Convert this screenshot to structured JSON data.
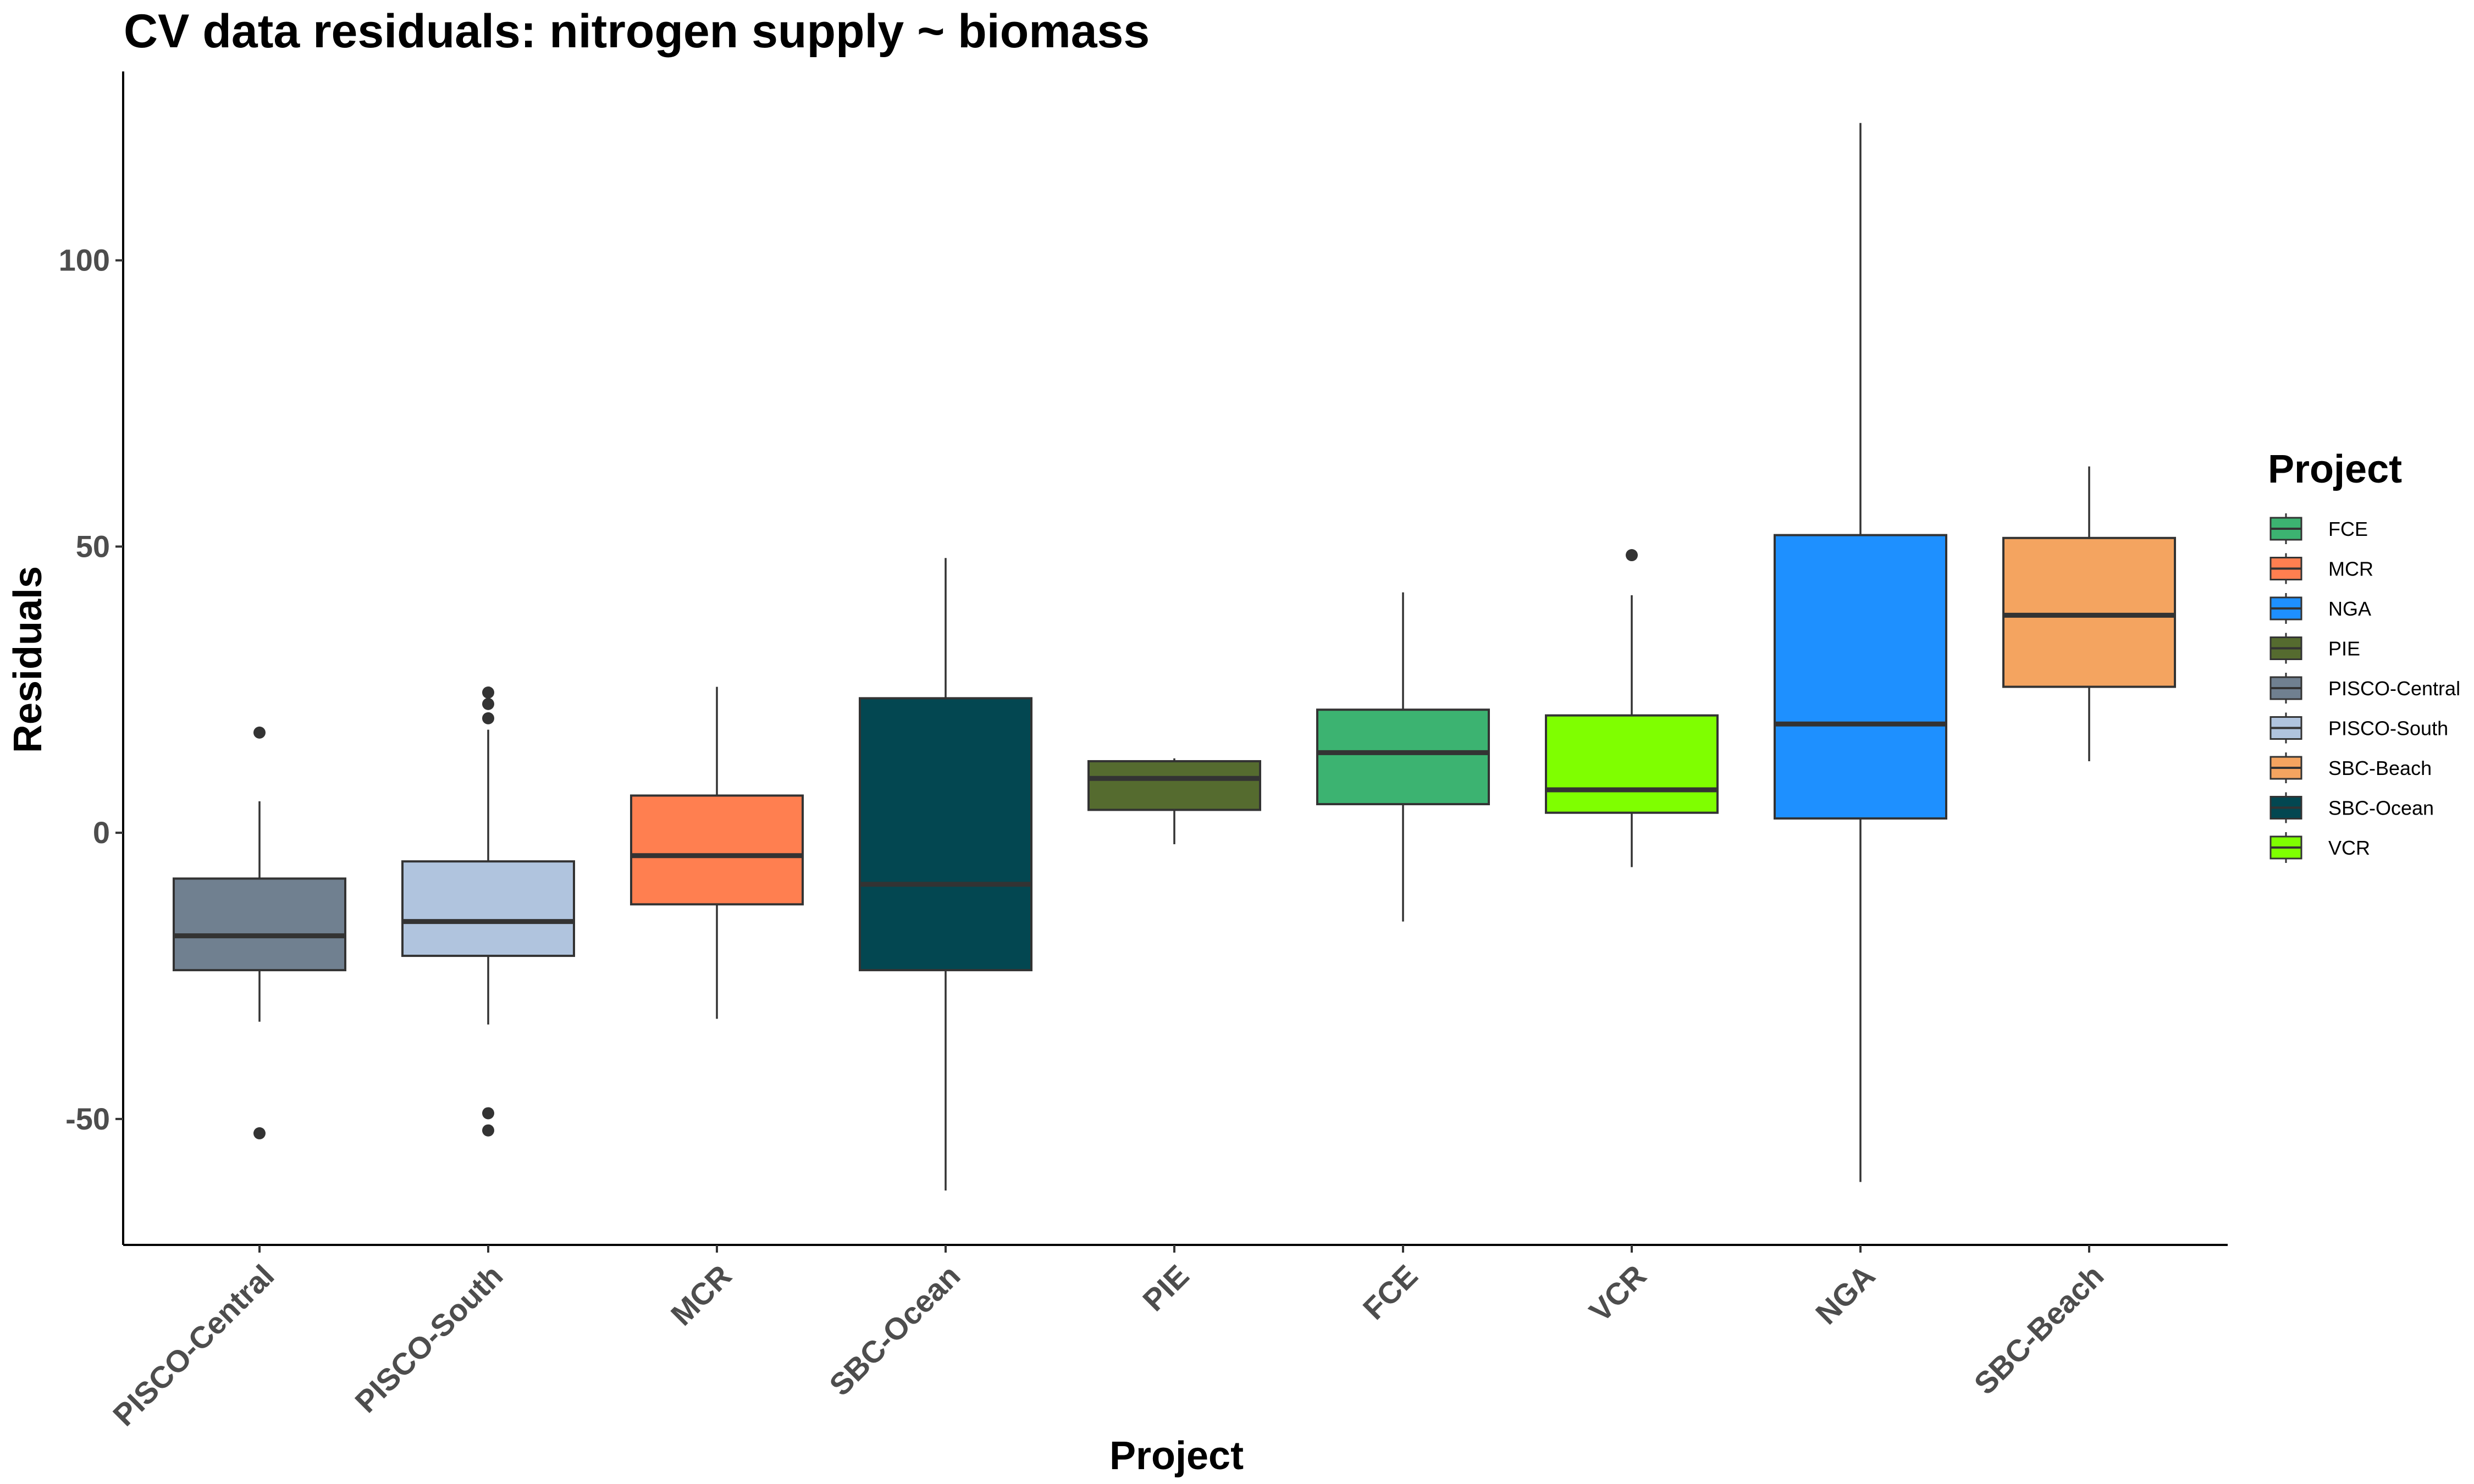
{
  "chart_data": {
    "type": "boxplot",
    "title": "CV data residuals: nitrogen supply ~ biomass",
    "xlabel": "Project",
    "ylabel": "Residuals",
    "ylim": [
      -72,
      133
    ],
    "yticks": [
      -50,
      0,
      50,
      100
    ],
    "ytick_labels": [
      "-50",
      "0",
      "50",
      "100"
    ],
    "grid": false,
    "legend": {
      "title": "Project",
      "position": "right",
      "entries": [
        "FCE",
        "MCR",
        "NGA",
        "PIE",
        "PISCO-Central",
        "PISCO-South",
        "SBC-Beach",
        "SBC-Ocean",
        "VCR"
      ]
    },
    "categories": [
      "PISCO-Central",
      "PISCO-South",
      "MCR",
      "SBC-Ocean",
      "PIE",
      "FCE",
      "VCR",
      "NGA",
      "SBC-Beach"
    ],
    "series": [
      {
        "name": "PISCO-Central",
        "color": "#708090",
        "whisker_low": -33,
        "q1": -24,
        "median": -18,
        "q3": -8,
        "whisker_high": 5.5,
        "outliers": [
          17.5,
          -52.5
        ]
      },
      {
        "name": "PISCO-South",
        "color": "#B0C4DE",
        "whisker_low": -33.5,
        "q1": -21.5,
        "median": -15.5,
        "q3": -5,
        "whisker_high": 18,
        "outliers": [
          24.5,
          22.5,
          20,
          -49,
          -52
        ]
      },
      {
        "name": "MCR",
        "color": "#FF7F50",
        "whisker_low": -32.5,
        "q1": -12.5,
        "median": -4,
        "q3": 6.5,
        "whisker_high": 25.5,
        "outliers": []
      },
      {
        "name": "SBC-Ocean",
        "color": "#034751",
        "whisker_low": -62.5,
        "q1": -24,
        "median": -9,
        "q3": 23.5,
        "whisker_high": 48,
        "outliers": []
      },
      {
        "name": "PIE",
        "color": "#556B2F",
        "whisker_low": -2,
        "q1": 4,
        "median": 9.5,
        "q3": 12.5,
        "whisker_high": 13,
        "outliers": []
      },
      {
        "name": "FCE",
        "color": "#3CB371",
        "whisker_low": -15.5,
        "q1": 5,
        "median": 14,
        "q3": 21.5,
        "whisker_high": 42,
        "outliers": []
      },
      {
        "name": "VCR",
        "color": "#7FFF00",
        "whisker_low": -6,
        "q1": 3.5,
        "median": 7.5,
        "q3": 20.5,
        "whisker_high": 41.5,
        "outliers": [
          48.5
        ]
      },
      {
        "name": "NGA",
        "color": "#1E90FF",
        "whisker_low": -61,
        "q1": 2.5,
        "median": 19,
        "q3": 52,
        "whisker_high": 124,
        "outliers": []
      },
      {
        "name": "SBC-Beach",
        "color": "#F4A460",
        "whisker_low": 12.5,
        "q1": 25.5,
        "median": 38,
        "q3": 51.5,
        "whisker_high": 64,
        "outliers": []
      }
    ]
  }
}
